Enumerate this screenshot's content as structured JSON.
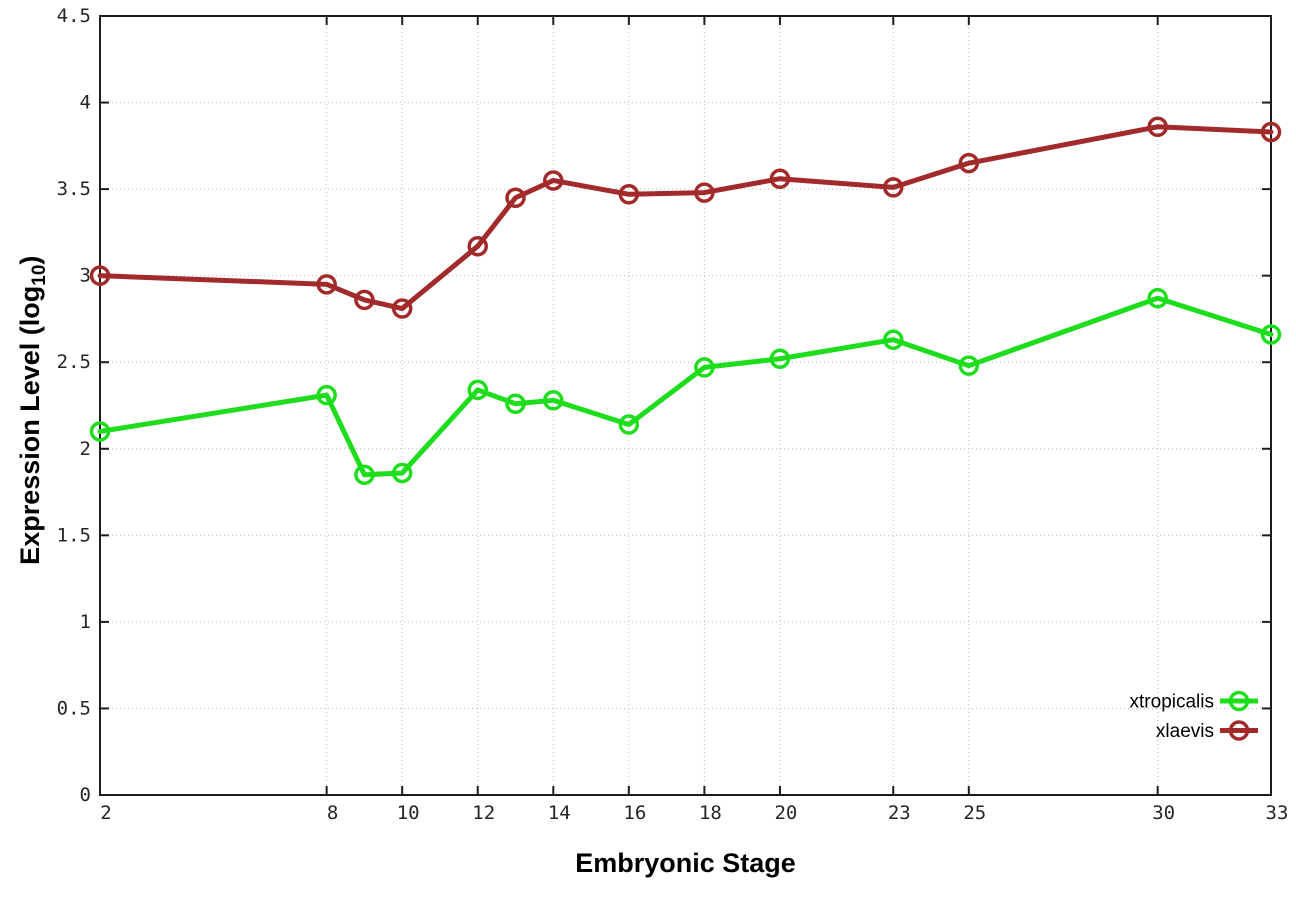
{
  "chart_data": {
    "type": "line",
    "title": "",
    "xlabel": "Embryonic Stage",
    "ylabel": {
      "prefix": "Expression Level (log",
      "sub": "10",
      "suffix": ")"
    },
    "xlim": [
      2,
      33
    ],
    "ylim": [
      0,
      4.5
    ],
    "grid": true,
    "legend_position": "bottom-right-inside",
    "x": [
      2,
      8,
      9,
      10,
      12,
      13,
      14,
      16,
      18,
      20,
      23,
      25,
      30,
      33
    ],
    "xtick_values": [
      2,
      8,
      10,
      12,
      14,
      16,
      18,
      20,
      23,
      25,
      30,
      33
    ],
    "xtick_labels": [
      "2",
      "8",
      "10",
      "12",
      "14",
      "16",
      "18",
      "20",
      "23",
      "25",
      "30",
      "33"
    ],
    "ytick_values": [
      0,
      0.5,
      1,
      1.5,
      2,
      2.5,
      3,
      3.5,
      4,
      4.5
    ],
    "ytick_labels": [
      "0",
      "0.5",
      "1",
      "1.5",
      "2",
      "2.5",
      "3",
      "3.5",
      "4",
      "4.5"
    ],
    "series": [
      {
        "name": "xtropicalis",
        "color": "#1ddd1d",
        "values": [
          2.1,
          2.31,
          1.85,
          1.86,
          2.34,
          2.26,
          2.28,
          2.14,
          2.47,
          2.52,
          2.63,
          2.48,
          2.87,
          2.66
        ]
      },
      {
        "name": "xlaevis",
        "color": "#a32a2a",
        "values": [
          3.0,
          2.95,
          2.86,
          2.81,
          3.17,
          3.45,
          3.55,
          3.47,
          3.48,
          3.56,
          3.51,
          3.65,
          3.86,
          3.83
        ]
      }
    ]
  },
  "colors": {
    "background": "#ffffff",
    "grid": "#bcbcbc",
    "axis": "#1c1c1c",
    "tick_text": "#262626"
  }
}
